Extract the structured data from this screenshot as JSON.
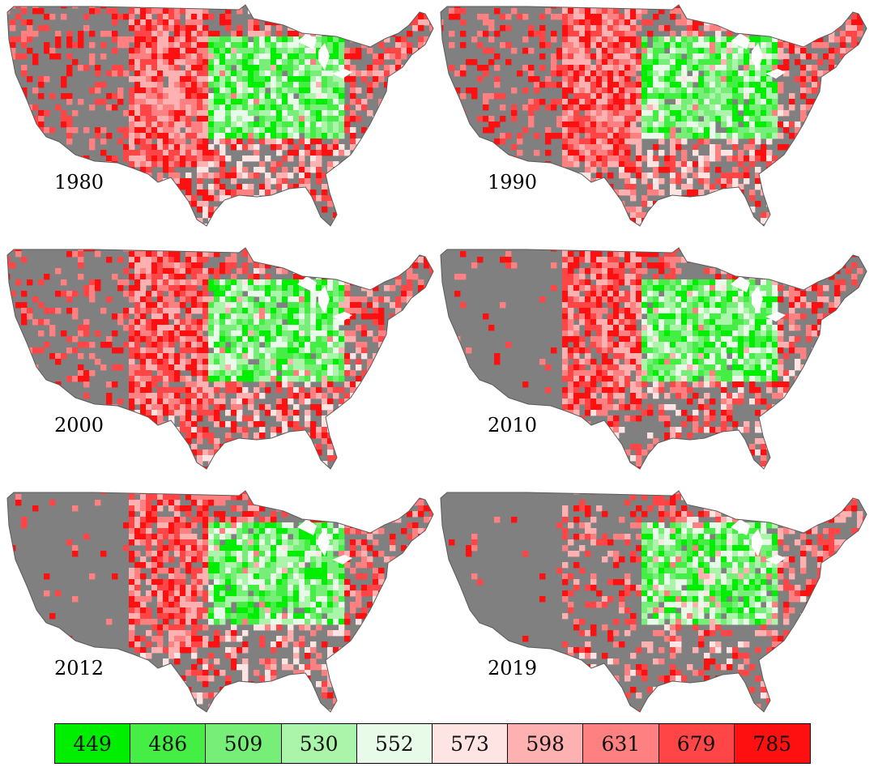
{
  "panels": [
    {
      "year": "1980",
      "profile": {
        "west": 0.32,
        "plains": 0.95,
        "corn": 0.95,
        "southeast": 0.65,
        "northeast": 0.55
      }
    },
    {
      "year": "1990",
      "profile": {
        "west": 0.28,
        "plains": 0.95,
        "corn": 0.9,
        "southeast": 0.6,
        "northeast": 0.6
      }
    },
    {
      "year": "2000",
      "profile": {
        "west": 0.25,
        "plains": 0.9,
        "corn": 0.9,
        "southeast": 0.55,
        "northeast": 0.6
      }
    },
    {
      "year": "2010",
      "profile": {
        "west": 0.06,
        "plains": 0.85,
        "corn": 0.9,
        "southeast": 0.45,
        "northeast": 0.55
      }
    },
    {
      "year": "2012",
      "profile": {
        "west": 0.05,
        "plains": 0.8,
        "corn": 0.9,
        "southeast": 0.45,
        "northeast": 0.5
      }
    },
    {
      "year": "2019",
      "profile": {
        "west": 0.03,
        "plains": 0.35,
        "corn": 0.85,
        "southeast": 0.4,
        "northeast": 0.5
      }
    }
  ],
  "legend": {
    "values": [
      "449",
      "486",
      "509",
      "530",
      "552",
      "573",
      "598",
      "631",
      "679",
      "785"
    ],
    "colors": [
      "#00ee00",
      "#44ee44",
      "#77ee77",
      "#aaf5aa",
      "#e8fbe8",
      "#ffe4e4",
      "#ffb0b0",
      "#ff8080",
      "#ff4545",
      "#ff1010"
    ]
  },
  "map_colors": {
    "no_data": "#808080",
    "border": "#5a5a5a",
    "lakes": "#ffffff"
  }
}
